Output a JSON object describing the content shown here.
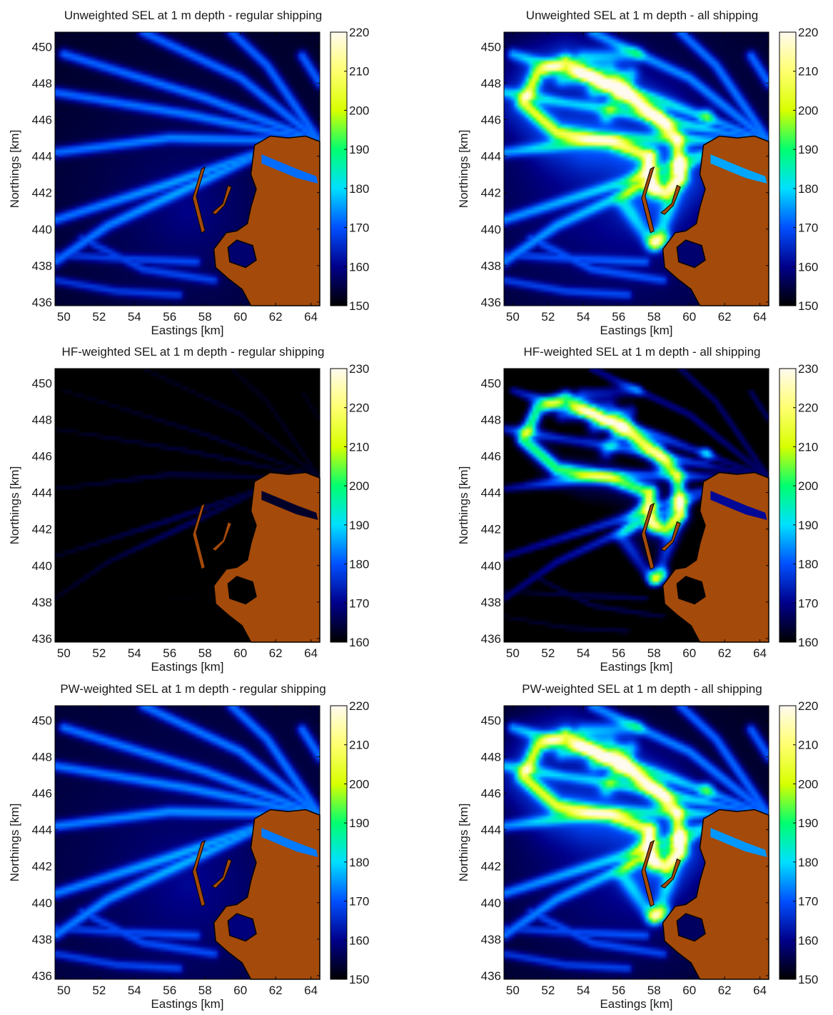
{
  "chart_data": [
    {
      "type": "heatmap",
      "title": "Unweighted SEL at 1 m depth - regular shipping",
      "xlabel": "Eastings [km]",
      "ylabel": "Northings [km]",
      "xlim": [
        49.5,
        64.5
      ],
      "ylim": [
        435.8,
        450.8
      ],
      "x_ticks": [
        50,
        52,
        54,
        56,
        58,
        60,
        62,
        64
      ],
      "y_ticks": [
        436,
        438,
        440,
        442,
        444,
        446,
        448,
        450
      ],
      "colorbar": {
        "min": 150,
        "max": 220,
        "ticks": [
          150,
          160,
          170,
          180,
          190,
          200,
          210,
          220
        ]
      },
      "scenario": "regular",
      "level_offset": 0,
      "colormap": [
        "#000000",
        "#00008a",
        "#0050ff",
        "#00e0ff",
        "#00ff70",
        "#d8ff00",
        "#ffff70",
        "#fffaf0"
      ],
      "land_color": "#a44a0a"
    },
    {
      "type": "heatmap",
      "title": "Unweighted SEL at 1 m depth - all shipping",
      "xlabel": "Eastings [km]",
      "ylabel": "Northings [km]",
      "xlim": [
        49.5,
        64.5
      ],
      "ylim": [
        435.8,
        450.8
      ],
      "x_ticks": [
        50,
        52,
        54,
        56,
        58,
        60,
        62,
        64
      ],
      "y_ticks": [
        436,
        438,
        440,
        442,
        444,
        446,
        448,
        450
      ],
      "colorbar": {
        "min": 150,
        "max": 220,
        "ticks": [
          150,
          160,
          170,
          180,
          190,
          200,
          210,
          220
        ]
      },
      "scenario": "all",
      "level_offset": 0,
      "colormap": [
        "#000000",
        "#00008a",
        "#0050ff",
        "#00e0ff",
        "#00ff70",
        "#d8ff00",
        "#ffff70",
        "#fffaf0"
      ],
      "land_color": "#a44a0a"
    },
    {
      "type": "heatmap",
      "title": "HF-weighted SEL at 1 m depth - regular shipping",
      "xlabel": "Eastings [km]",
      "ylabel": "Northings [km]",
      "xlim": [
        49.5,
        64.5
      ],
      "ylim": [
        435.8,
        450.8
      ],
      "x_ticks": [
        50,
        52,
        54,
        56,
        58,
        60,
        62,
        64
      ],
      "y_ticks": [
        436,
        438,
        440,
        442,
        444,
        446,
        448,
        450
      ],
      "colorbar": {
        "min": 160,
        "max": 230,
        "ticks": [
          160,
          170,
          180,
          190,
          200,
          210,
          220,
          230
        ]
      },
      "scenario": "regular",
      "level_offset": -9,
      "colormap": [
        "#000000",
        "#00008a",
        "#0050ff",
        "#00e0ff",
        "#00ff70",
        "#d8ff00",
        "#ffff70",
        "#fffaf0"
      ],
      "land_color": "#a44a0a"
    },
    {
      "type": "heatmap",
      "title": "HF-weighted SEL at 1 m depth - all shipping",
      "xlabel": "Eastings [km]",
      "ylabel": "Northings [km]",
      "xlim": [
        49.5,
        64.5
      ],
      "ylim": [
        435.8,
        450.8
      ],
      "x_ticks": [
        50,
        52,
        54,
        56,
        58,
        60,
        62,
        64
      ],
      "y_ticks": [
        436,
        438,
        440,
        442,
        444,
        446,
        448,
        450
      ],
      "colorbar": {
        "min": 160,
        "max": 230,
        "ticks": [
          160,
          170,
          180,
          190,
          200,
          210,
          220,
          230
        ]
      },
      "scenario": "all",
      "level_offset": -5,
      "colormap": [
        "#000000",
        "#00008a",
        "#0050ff",
        "#00e0ff",
        "#00ff70",
        "#d8ff00",
        "#ffff70",
        "#fffaf0"
      ],
      "land_color": "#a44a0a"
    },
    {
      "type": "heatmap",
      "title": "PW-weighted SEL at 1 m depth - regular shipping",
      "xlabel": "Eastings [km]",
      "ylabel": "Northings [km]",
      "xlim": [
        49.5,
        64.5
      ],
      "ylim": [
        435.8,
        450.8
      ],
      "x_ticks": [
        50,
        52,
        54,
        56,
        58,
        60,
        62,
        64
      ],
      "y_ticks": [
        436,
        438,
        440,
        442,
        444,
        446,
        448,
        450
      ],
      "colorbar": {
        "min": 150,
        "max": 220,
        "ticks": [
          150,
          160,
          170,
          180,
          190,
          200,
          210,
          220
        ]
      },
      "scenario": "regular",
      "level_offset": 1,
      "colormap": [
        "#000000",
        "#00008a",
        "#0050ff",
        "#00e0ff",
        "#00ff70",
        "#d8ff00",
        "#ffff70",
        "#fffaf0"
      ],
      "land_color": "#a44a0a"
    },
    {
      "type": "heatmap",
      "title": "PW-weighted SEL at 1 m depth - all shipping",
      "xlabel": "Eastings [km]",
      "ylabel": "Northings [km]",
      "xlim": [
        49.5,
        64.5
      ],
      "ylim": [
        435.8,
        450.8
      ],
      "x_ticks": [
        50,
        52,
        54,
        56,
        58,
        60,
        62,
        64
      ],
      "y_ticks": [
        436,
        438,
        440,
        442,
        444,
        446,
        448,
        450
      ],
      "colorbar": {
        "min": 150,
        "max": 220,
        "ticks": [
          150,
          160,
          170,
          180,
          190,
          200,
          210,
          220
        ]
      },
      "scenario": "all",
      "level_offset": -1,
      "colormap": [
        "#000000",
        "#00008a",
        "#0050ff",
        "#00e0ff",
        "#00ff70",
        "#d8ff00",
        "#ffff70",
        "#fffaf0"
      ],
      "land_color": "#a44a0a"
    }
  ]
}
